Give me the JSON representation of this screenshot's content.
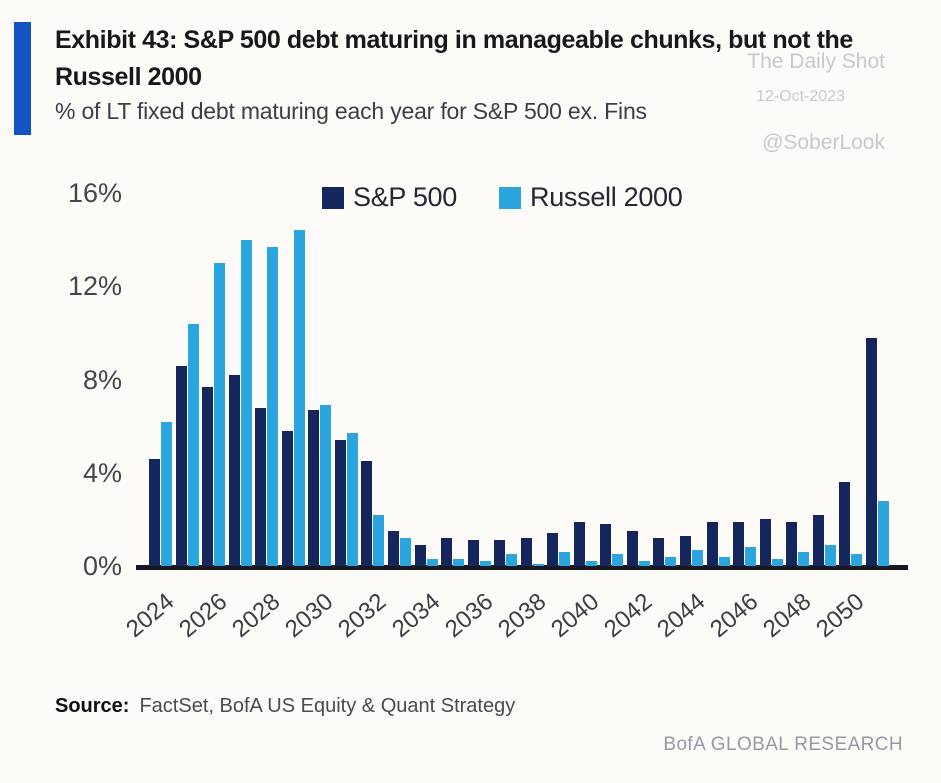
{
  "header": {
    "accent_color": "#1353c4",
    "title_line1": "Exhibit 43: S&P 500 debt maturing in manageable chunks, but not the",
    "title_line2": "Russell 2000",
    "subtitle": "% of LT fixed debt maturing each year for S&P 500 ex. Fins"
  },
  "watermark": {
    "name": "The Daily Shot",
    "date": "12-Oct-2023",
    "handle": "@SoberLook"
  },
  "footer": {
    "source_label": "Source:",
    "source_text": "FactSet, BofA US Equity & Quant Strategy",
    "brand": "BofA GLOBAL RESEARCH"
  },
  "chart_data": {
    "type": "bar",
    "title": "% of LT fixed debt maturing each year for S&P 500 ex. Fins",
    "categories": [
      "2024",
      "2025",
      "2026",
      "2027",
      "2028",
      "2029",
      "2030",
      "2031",
      "2032",
      "2033",
      "2034",
      "2035",
      "2036",
      "2037",
      "2038",
      "2039",
      "2040",
      "2041",
      "2042",
      "2043",
      "2044",
      "2045",
      "2046",
      "2047",
      "2048",
      "2049",
      "2050",
      "2051"
    ],
    "series": [
      {
        "name": "S&P 500",
        "color": "#14265c",
        "values": [
          4.6,
          8.6,
          7.7,
          8.2,
          6.8,
          5.8,
          6.7,
          5.4,
          4.5,
          1.5,
          0.9,
          1.2,
          1.1,
          1.1,
          1.2,
          1.4,
          1.9,
          1.8,
          1.5,
          1.2,
          1.3,
          1.9,
          1.9,
          2.0,
          1.9,
          2.2,
          3.6,
          9.8
        ]
      },
      {
        "name": "Russell 2000",
        "color": "#2aa5dd",
        "values": [
          6.2,
          10.4,
          13.0,
          14.0,
          13.7,
          14.4,
          6.9,
          5.7,
          2.2,
          1.2,
          0.3,
          0.3,
          0.2,
          0.5,
          0.1,
          0.6,
          0.2,
          0.5,
          0.2,
          0.4,
          0.7,
          0.4,
          0.8,
          0.3,
          0.6,
          0.9,
          0.5,
          2.8
        ]
      }
    ],
    "ylim": [
      0,
      16
    ],
    "yticks": [
      {
        "label": "16%",
        "value": 16
      },
      {
        "label": "12%",
        "value": 12
      },
      {
        "label": "8%",
        "value": 8
      },
      {
        "label": "4%",
        "value": 4
      },
      {
        "label": "0%",
        "value": 0
      }
    ],
    "xtick_labels": [
      "2024",
      "2026",
      "2028",
      "2030",
      "2032",
      "2034",
      "2036",
      "2038",
      "2040",
      "2042",
      "2044",
      "2046",
      "2048",
      "2050"
    ],
    "grid": false,
    "legend_position": "top-center"
  }
}
